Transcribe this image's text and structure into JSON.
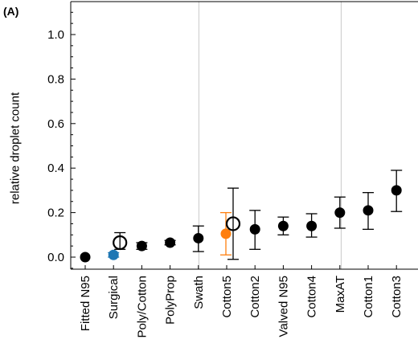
{
  "panel_label": "(A)",
  "chart_data": {
    "type": "scatter",
    "title": "",
    "xlabel": "",
    "ylabel": "relative droplet count",
    "ylim": [
      -0.05,
      1.15
    ],
    "yticks": [
      "0.0",
      "0.2",
      "0.4",
      "0.6",
      "0.8",
      "1.0"
    ],
    "ytick_values": [
      0.0,
      0.2,
      0.4,
      0.6,
      0.8,
      1.0
    ],
    "categories": [
      "Fitted N95",
      "Surgical",
      "Poly/Cotton",
      "PolyProp",
      "Swath",
      "Cotton5",
      "Cotton2",
      "Valved N95",
      "Cotton4",
      "MaxAT",
      "Cotton1",
      "Cotton3"
    ],
    "grid": "vertical lines at Swath/Cotton5 and MaxAT/Cotton1 boundaries",
    "series": [
      {
        "marker": "filled-circle",
        "color": "#000000",
        "points": [
          {
            "category": "Fitted N95",
            "y": 0.0,
            "err_low": 0.0,
            "err_high": 0.0
          },
          {
            "category": "Poly/Cotton",
            "y": 0.05,
            "err_low": 0.035,
            "err_high": 0.065
          },
          {
            "category": "PolyProp",
            "y": 0.065,
            "err_low": 0.055,
            "err_high": 0.075
          },
          {
            "category": "Swath",
            "y": 0.085,
            "err_low": 0.025,
            "err_high": 0.14
          },
          {
            "category": "Cotton2",
            "y": 0.125,
            "err_low": 0.035,
            "err_high": 0.21
          },
          {
            "category": "Valved N95",
            "y": 0.14,
            "err_low": 0.1,
            "err_high": 0.18
          },
          {
            "category": "Cotton4",
            "y": 0.14,
            "err_low": 0.09,
            "err_high": 0.195
          },
          {
            "category": "MaxAT",
            "y": 0.2,
            "err_low": 0.13,
            "err_high": 0.27
          },
          {
            "category": "Cotton1",
            "y": 0.21,
            "err_low": 0.125,
            "err_high": 0.29
          },
          {
            "category": "Cotton3",
            "y": 0.3,
            "err_low": 0.205,
            "err_high": 0.39
          }
        ]
      },
      {
        "marker": "filled-circle",
        "color": "#1f77b4",
        "points": [
          {
            "category": "Surgical",
            "y": 0.01,
            "err_low": 0.0,
            "err_high": 0.02
          }
        ]
      },
      {
        "marker": "filled-circle",
        "color": "#ff7f0e",
        "points": [
          {
            "category": "Cotton5",
            "y": 0.105,
            "err_low": 0.01,
            "err_high": 0.2
          }
        ]
      },
      {
        "marker": "open-circle",
        "color": "#000000",
        "points": [
          {
            "category": "Surgical",
            "y": 0.065,
            "err_low": 0.035,
            "err_high": 0.11
          },
          {
            "category": "Cotton5",
            "y": 0.15,
            "err_low": -0.01,
            "err_high": 0.31
          }
        ]
      }
    ]
  }
}
